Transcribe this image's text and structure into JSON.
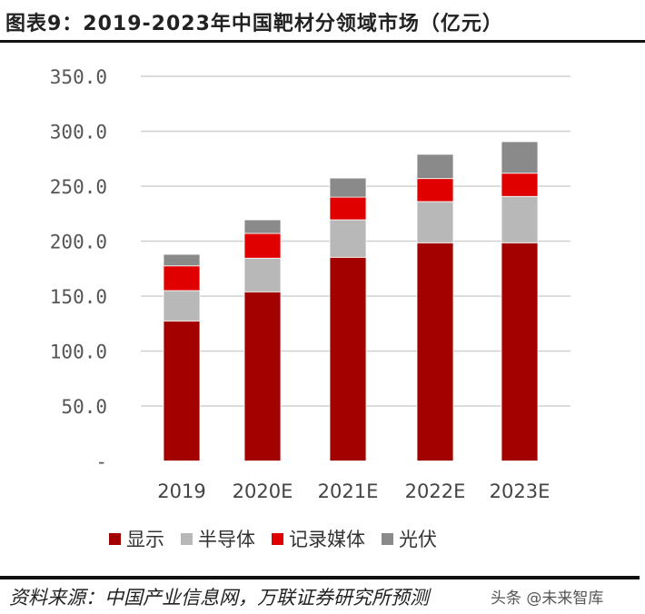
{
  "title": "图表9：2019-2023年中国靶材分领域市场（亿元）",
  "chart_data": {
    "type": "bar",
    "stacked": true,
    "title": "图表9：2019-2023年中国靶材分领域市场（亿元）",
    "categories": [
      "2019",
      "2020E",
      "2021E",
      "2022E",
      "2023E"
    ],
    "series": [
      {
        "name": "显示",
        "color": "#a30000",
        "values": [
          127.4,
          153.9,
          185.3,
          198.5,
          198.5
        ]
      },
      {
        "name": "半导体",
        "color": "#b8b8b8",
        "values": [
          27.6,
          30.6,
          34.1,
          37.5,
          42.2
        ]
      },
      {
        "name": "记录媒体",
        "color": "#e00000",
        "values": [
          22.5,
          22.5,
          20.6,
          20.9,
          21.1
        ]
      },
      {
        "name": "光伏",
        "color": "#8a8a8a",
        "values": [
          10.5,
          12.4,
          17.4,
          22.1,
          28.7
        ]
      }
    ],
    "ylim": [
      0,
      350
    ],
    "yticks": [
      "-",
      "50.0",
      "100.0",
      "150.0",
      "200.0",
      "250.0",
      "300.0",
      "350.0"
    ],
    "grid": true,
    "legend": "bottom"
  },
  "source": "资料来源：中国产业信息网，万联证券研究所预测",
  "watermark": "头条 @未来智库"
}
